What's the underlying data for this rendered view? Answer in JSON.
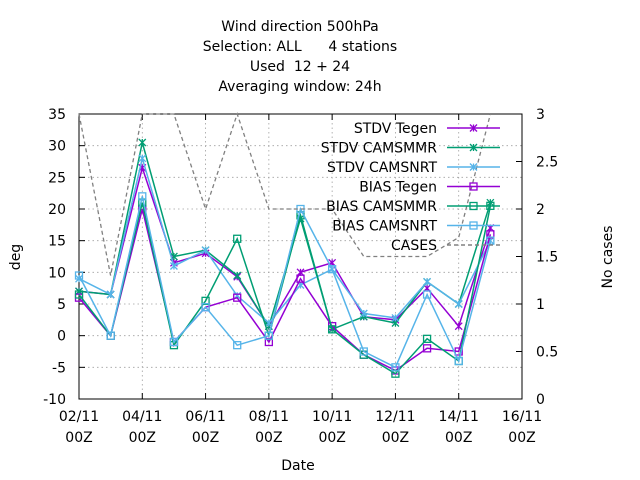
{
  "chart_data": {
    "type": "line",
    "title_lines": [
      "Wind direction 500hPa",
      "Selection: ALL      4 stations",
      "Used  12 + 24",
      "Averaging window: 24h"
    ],
    "xlabel": "Date",
    "ylabel": "deg",
    "y2label": "No cases",
    "xlim": [
      0,
      14
    ],
    "ylim": [
      -10,
      35
    ],
    "y2lim": [
      0,
      3
    ],
    "grid": true,
    "legend_position": "top-right",
    "x_ticks": [
      {
        "x": 0,
        "line1": "02/11",
        "line2": "00Z"
      },
      {
        "x": 2,
        "line1": "04/11",
        "line2": "00Z"
      },
      {
        "x": 4,
        "line1": "06/11",
        "line2": "00Z"
      },
      {
        "x": 6,
        "line1": "08/11",
        "line2": "00Z"
      },
      {
        "x": 8,
        "line1": "10/11",
        "line2": "00Z"
      },
      {
        "x": 10,
        "line1": "12/11",
        "line2": "00Z"
      },
      {
        "x": 12,
        "line1": "14/11",
        "line2": "00Z"
      },
      {
        "x": 14,
        "line1": "16/11",
        "line2": "00Z"
      }
    ],
    "y_ticks": [
      -10,
      -5,
      0,
      5,
      10,
      15,
      20,
      25,
      30,
      35
    ],
    "y2_ticks": [
      "0",
      "0.5",
      "1",
      "1.5",
      "2",
      "2.5",
      "3"
    ],
    "x": [
      0,
      1,
      2,
      3,
      4,
      5,
      6,
      7,
      8,
      9,
      10,
      11,
      12,
      13
    ],
    "series": [
      {
        "name": "STDV Tegen",
        "color": "#9400d3",
        "marker": "star",
        "axis": "y1",
        "dash": false,
        "values": [
          7,
          6.5,
          26.5,
          11.5,
          13,
          9.3,
          1.5,
          10,
          11.5,
          3,
          2.5,
          7.5,
          1.5,
          17
        ]
      },
      {
        "name": "STDV CAMSMMR",
        "color": "#009e73",
        "marker": "star",
        "axis": "y1",
        "dash": false,
        "values": [
          7,
          6.5,
          30.5,
          12.5,
          13.5,
          9.5,
          1.5,
          18.5,
          1,
          3,
          2,
          8.5,
          5,
          21
        ]
      },
      {
        "name": "STDV CAMSNRT",
        "color": "#56b4e9",
        "marker": "star",
        "axis": "y1",
        "dash": false,
        "values": [
          9,
          6.5,
          28,
          11,
          13.5,
          6.3,
          2,
          8,
          10.5,
          3.5,
          2.8,
          8.5,
          5,
          15
        ]
      },
      {
        "name": "BIAS Tegen",
        "color": "#9400d3",
        "marker": "square",
        "axis": "y1",
        "dash": false,
        "values": [
          6,
          0,
          20,
          -1,
          4.5,
          6,
          -1,
          9,
          1.5,
          -3,
          -5.5,
          -2,
          -2.5,
          16
        ]
      },
      {
        "name": "BIAS CAMSMMR",
        "color": "#009e73",
        "marker": "square",
        "axis": "y1",
        "dash": false,
        "values": [
          6.5,
          0,
          21,
          -1.5,
          5.5,
          15.3,
          0,
          19,
          1,
          -3,
          -6,
          -0.5,
          -4,
          20.5
        ]
      },
      {
        "name": "BIAS CAMSNRT",
        "color": "#56b4e9",
        "marker": "square",
        "axis": "y1",
        "dash": false,
        "values": [
          9.5,
          0,
          22,
          -1,
          4.5,
          -1.5,
          0,
          20,
          10.5,
          -2.5,
          -5,
          6.5,
          -4,
          15
        ]
      },
      {
        "name": "CASES",
        "color": "#808080",
        "marker": "none",
        "axis": "y2",
        "dash": true,
        "values": [
          3,
          1.3,
          3,
          3,
          2,
          3,
          2,
          2,
          2,
          1.5,
          1.5,
          1.5,
          1.7,
          3
        ]
      }
    ]
  }
}
